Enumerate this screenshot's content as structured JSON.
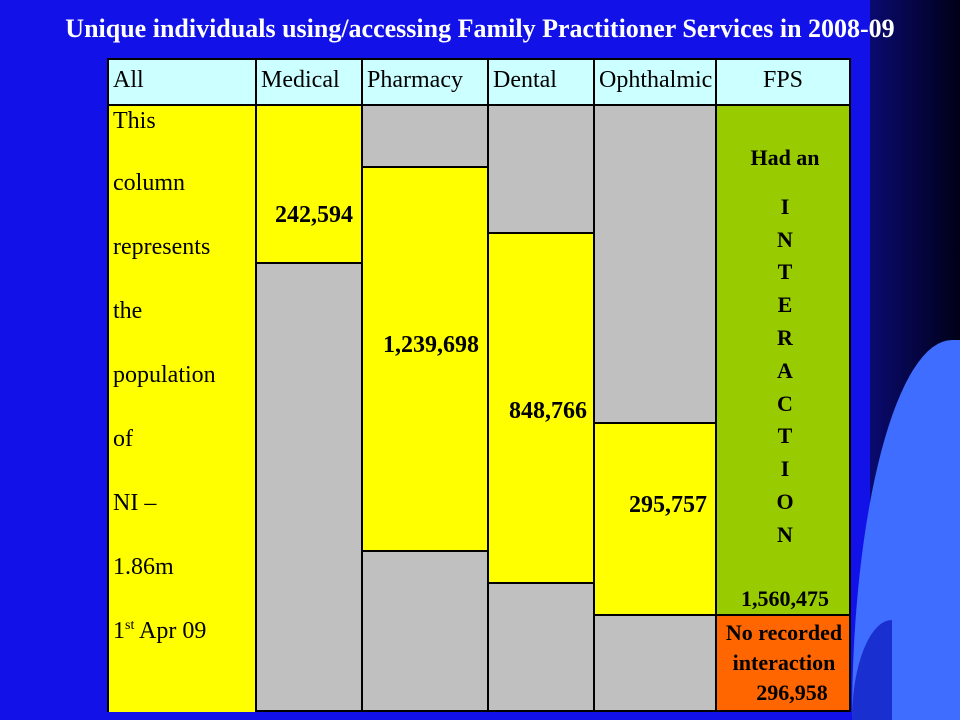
{
  "title": "Unique individuals using/accessing Family Practitioner Services in 2008-09",
  "table": {
    "headers": [
      "All",
      "Medical",
      "Pharmacy",
      "Dental",
      "Ophthalmic",
      "FPS"
    ],
    "all_column": {
      "lines": [
        "This",
        "column",
        "represents",
        "the",
        "population",
        "of",
        "NI –",
        "1.86m"
      ],
      "date_prefix": "1",
      "date_sup": "st",
      "date_suffix": " Apr 09"
    },
    "medical_value": "242,594",
    "pharmacy_value": "1,239,698",
    "dental_value": "848,766",
    "ophthalmic_value": "295,757",
    "fps": {
      "had_an": "Had an",
      "letters": [
        "I",
        "N",
        "T",
        "E",
        "R",
        "A",
        "C",
        "T",
        "I",
        "O",
        "N"
      ],
      "interaction_value": "1,560,475",
      "no_recorded_line1": "No recorded",
      "no_recorded_line2": "interaction",
      "no_recorded_value": "296,958"
    }
  },
  "colors": {
    "background": "#1212e8",
    "header": "#ccffff",
    "used": "#ffff00",
    "not_used": "#c0c0c0",
    "interaction": "#99cc00",
    "no_interaction": "#ff6600"
  }
}
